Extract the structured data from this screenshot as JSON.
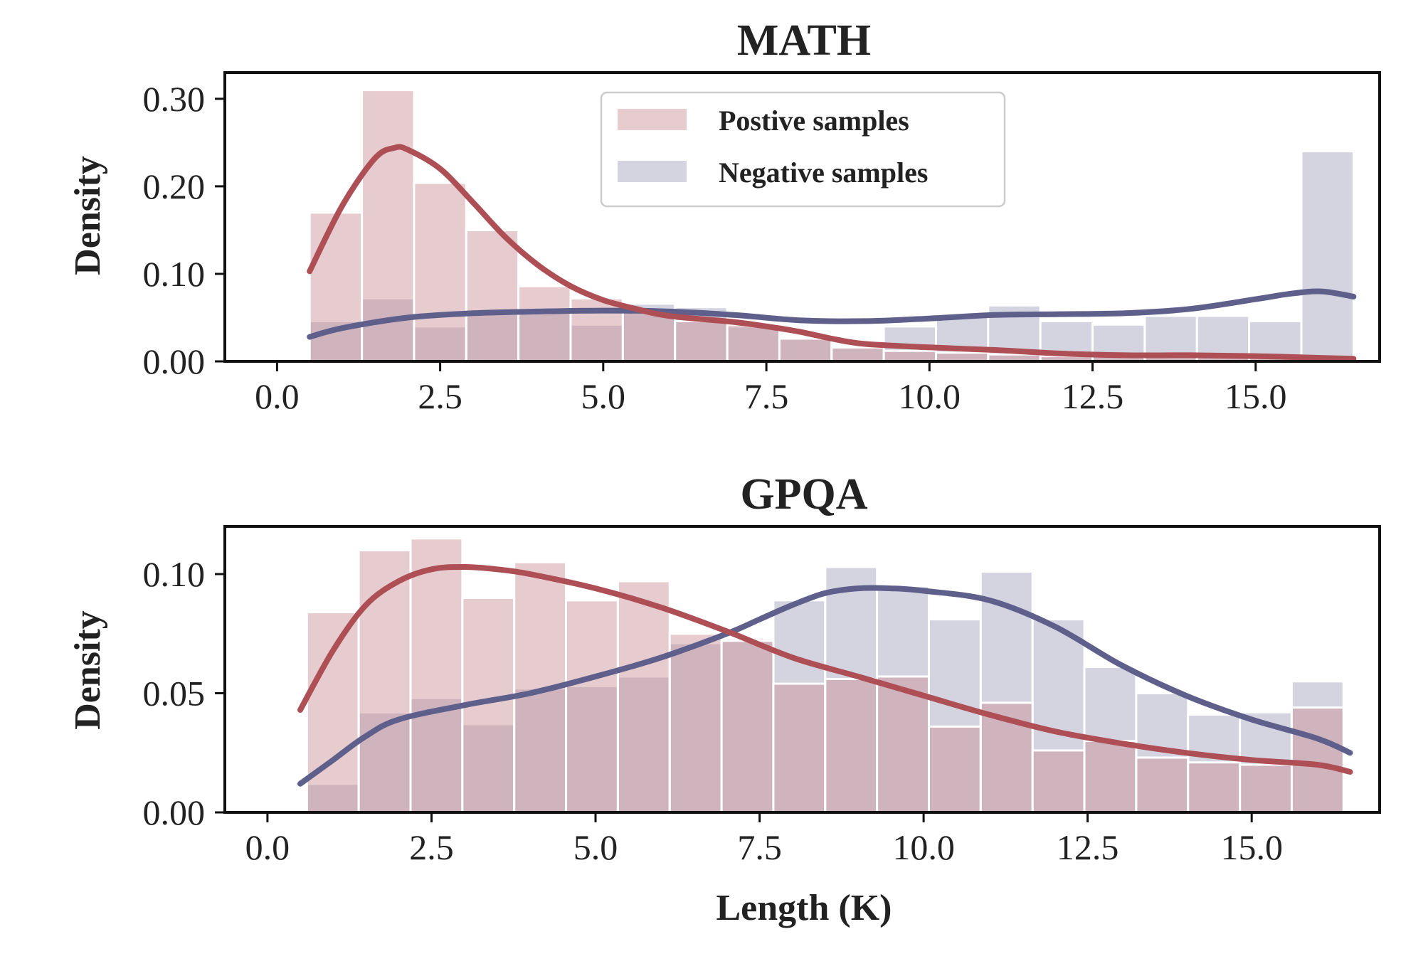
{
  "colors": {
    "positive_bar": "#c98f94",
    "negative_bar": "#a7a9c2",
    "positive_line": "#ad4f55",
    "negative_line": "#5f5f8c",
    "axis": "#111111"
  },
  "chart_data": [
    {
      "type": "histogram-kde",
      "title": "MATH",
      "xlabel": "",
      "ylabel": "Density",
      "xlim": [
        -0.8,
        16.9
      ],
      "ylim": [
        0,
        0.33
      ],
      "x_ticks": [
        "0.0",
        "2.5",
        "5.0",
        "7.5",
        "10.0",
        "12.5",
        "15.0"
      ],
      "x_tick_values": [
        0,
        2.5,
        5,
        7.5,
        10,
        12.5,
        15
      ],
      "y_ticks": [
        "0.00",
        "0.10",
        "0.20",
        "0.30"
      ],
      "y_tick_values": [
        0,
        0.1,
        0.2,
        0.3
      ],
      "legend": {
        "location": "top-center",
        "entries": [
          "Postive samples",
          "Negative samples"
        ]
      },
      "bin_edges": [
        0.5,
        1.3,
        2.1,
        2.9,
        3.7,
        4.5,
        5.3,
        6.1,
        6.9,
        7.7,
        8.5,
        9.3,
        10.1,
        10.9,
        11.7,
        12.5,
        13.3,
        14.1,
        14.9,
        15.7,
        16.5
      ],
      "series": [
        {
          "name": "Postive samples",
          "values": [
            0.17,
            0.31,
            0.204,
            0.15,
            0.086,
            0.072,
            0.058,
            0.046,
            0.042,
            0.026,
            0.016,
            0.012,
            0.01,
            0.008,
            0.006,
            0.006,
            0.005,
            0.005,
            0.004,
            0.004
          ],
          "kde_x": [
            0.5,
            1.0,
            1.5,
            1.8,
            2.0,
            2.5,
            3.0,
            3.5,
            4.0,
            4.5,
            5.0,
            5.5,
            6.0,
            7.0,
            7.5,
            8.0,
            8.5,
            9.0,
            10.0,
            11.0,
            12.0,
            13.0,
            14.0,
            15.0,
            16.0,
            16.5
          ],
          "kde_y": [
            0.103,
            0.178,
            0.232,
            0.244,
            0.242,
            0.22,
            0.182,
            0.142,
            0.11,
            0.086,
            0.07,
            0.06,
            0.052,
            0.045,
            0.04,
            0.034,
            0.026,
            0.02,
            0.016,
            0.013,
            0.009,
            0.007,
            0.007,
            0.006,
            0.004,
            0.003
          ]
        },
        {
          "name": "Negative samples",
          "values": [
            0.046,
            0.072,
            0.04,
            0.054,
            0.058,
            0.042,
            0.066,
            0.062,
            0.04,
            0.026,
            0.016,
            0.04,
            0.052,
            0.064,
            0.046,
            0.042,
            0.052,
            0.052,
            0.046,
            0.24
          ],
          "kde_x": [
            0.5,
            1.0,
            2.0,
            3.0,
            4.0,
            5.0,
            6.0,
            7.0,
            8.0,
            9.0,
            10.0,
            11.0,
            12.0,
            13.0,
            14.0,
            15.0,
            15.5,
            16.0,
            16.5
          ],
          "kde_y": [
            0.028,
            0.038,
            0.05,
            0.055,
            0.057,
            0.058,
            0.057,
            0.053,
            0.047,
            0.046,
            0.049,
            0.053,
            0.054,
            0.055,
            0.06,
            0.071,
            0.077,
            0.08,
            0.074
          ]
        }
      ]
    },
    {
      "type": "histogram-kde",
      "title": "GPQA",
      "xlabel": "Length (K)",
      "ylabel": "Density",
      "xlim": [
        -0.65,
        16.95
      ],
      "ylim": [
        0,
        0.12
      ],
      "x_ticks": [
        "0.0",
        "2.5",
        "5.0",
        "7.5",
        "10.0",
        "12.5",
        "15.0"
      ],
      "x_tick_values": [
        0,
        2.5,
        5,
        7.5,
        10,
        12.5,
        15
      ],
      "y_ticks": [
        "0.00",
        "0.05",
        "0.10"
      ],
      "y_tick_values": [
        0,
        0.05,
        0.1
      ],
      "bin_edges": [
        0.6,
        1.39,
        2.18,
        2.97,
        3.76,
        4.55,
        5.34,
        6.13,
        6.92,
        7.71,
        8.5,
        9.29,
        10.08,
        10.87,
        11.66,
        12.45,
        13.24,
        14.03,
        14.82,
        15.61,
        16.4
      ],
      "series": [
        {
          "name": "Postive samples",
          "values": [
            0.084,
            0.11,
            0.115,
            0.09,
            0.105,
            0.089,
            0.097,
            0.075,
            0.072,
            0.054,
            0.056,
            0.057,
            0.036,
            0.046,
            0.026,
            0.03,
            0.023,
            0.021,
            0.02,
            0.044
          ],
          "kde_x": [
            0.5,
            1.0,
            1.5,
            2.0,
            2.5,
            3.0,
            3.5,
            4.0,
            5.0,
            6.0,
            7.0,
            8.0,
            9.0,
            10.0,
            11.0,
            12.0,
            13.0,
            14.0,
            15.0,
            16.0,
            16.5
          ],
          "kde_y": [
            0.043,
            0.068,
            0.087,
            0.097,
            0.102,
            0.103,
            0.102,
            0.1,
            0.094,
            0.086,
            0.076,
            0.065,
            0.057,
            0.049,
            0.041,
            0.034,
            0.029,
            0.025,
            0.022,
            0.02,
            0.017
          ]
        },
        {
          "name": "Negative samples",
          "values": [
            0.012,
            0.042,
            0.048,
            0.037,
            0.052,
            0.053,
            0.057,
            0.071,
            0.073,
            0.089,
            0.103,
            0.095,
            0.081,
            0.101,
            0.081,
            0.061,
            0.05,
            0.041,
            0.042,
            0.055
          ],
          "kde_x": [
            0.5,
            1.0,
            1.5,
            2.0,
            3.0,
            4.0,
            5.0,
            6.0,
            7.0,
            7.5,
            8.0,
            8.5,
            9.0,
            9.5,
            10.0,
            11.0,
            12.0,
            13.0,
            14.0,
            15.0,
            16.0,
            16.5
          ],
          "kde_y": [
            0.012,
            0.022,
            0.032,
            0.039,
            0.045,
            0.05,
            0.057,
            0.065,
            0.075,
            0.081,
            0.087,
            0.092,
            0.094,
            0.094,
            0.093,
            0.089,
            0.078,
            0.062,
            0.049,
            0.039,
            0.031,
            0.025
          ]
        }
      ]
    }
  ]
}
